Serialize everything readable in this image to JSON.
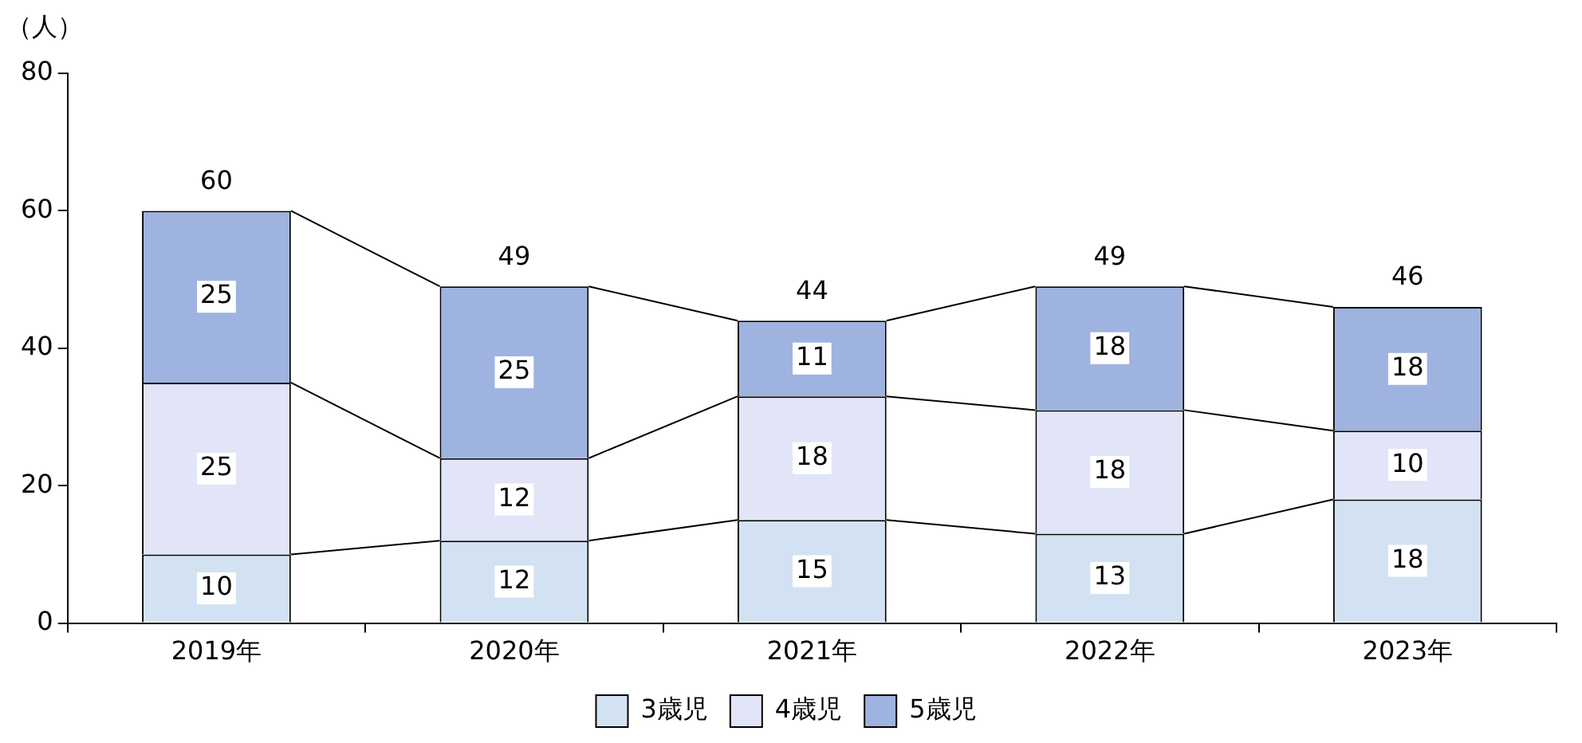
{
  "chart_data": {
    "type": "bar",
    "ylabel": "（人）",
    "categories": [
      "2019年",
      "2020年",
      "2021年",
      "2022年",
      "2023年"
    ],
    "series": [
      {
        "name": "3歳児",
        "color": "#d3e2f2",
        "values": [
          10,
          12,
          15,
          13,
          18
        ]
      },
      {
        "name": "4歳児",
        "color": "#e1e5f7",
        "values": [
          25,
          12,
          18,
          18,
          10
        ]
      },
      {
        "name": "5歳児",
        "color": "#9fb3e0",
        "values": [
          25,
          25,
          11,
          18,
          18
        ]
      }
    ],
    "stacked": true,
    "data_labels": true,
    "totals": [
      "60",
      "49",
      "44",
      "49",
      "46"
    ],
    "ylim": [
      0,
      80
    ],
    "yticks": [
      0,
      20,
      40,
      60,
      80
    ],
    "legend": "bottom"
  }
}
